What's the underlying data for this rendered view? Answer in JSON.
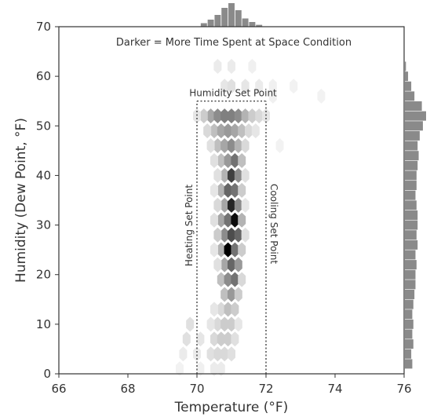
{
  "chart_data": {
    "type": "hexbin",
    "xlabel": "Temperature (°F)",
    "ylabel": "Humidity (Dew Point, °F)",
    "xlim": [
      66,
      76
    ],
    "ylim": [
      0,
      70
    ],
    "x_ticks": [
      66,
      68,
      70,
      72,
      74,
      76
    ],
    "y_ticks": [
      0,
      10,
      20,
      30,
      40,
      50,
      60,
      70
    ],
    "grid": false,
    "annotations": {
      "note": "Darker = More Time Spent at Space Condition",
      "humidity_set_point": "Humidity Set Point",
      "heating_set_point": "Heating Set Point",
      "cooling_set_point": "Cooling Set Point"
    },
    "set_points": {
      "heating_temperature": 70,
      "cooling_temperature": 72,
      "humidity_dew_point": 55
    },
    "hex_cells": [
      {
        "x": 70.4,
        "y": 52,
        "d": 0.35
      },
      {
        "x": 70.6,
        "y": 52,
        "d": 0.45
      },
      {
        "x": 70.8,
        "y": 52,
        "d": 0.5
      },
      {
        "x": 71.0,
        "y": 52,
        "d": 0.5
      },
      {
        "x": 71.2,
        "y": 52,
        "d": 0.45
      },
      {
        "x": 71.4,
        "y": 52,
        "d": 0.3
      },
      {
        "x": 71.6,
        "y": 52,
        "d": 0.2
      },
      {
        "x": 71.8,
        "y": 52,
        "d": 0.15
      },
      {
        "x": 72.0,
        "y": 52,
        "d": 0.1
      },
      {
        "x": 70.2,
        "y": 52,
        "d": 0.2
      },
      {
        "x": 70.0,
        "y": 52,
        "d": 0.1
      },
      {
        "x": 70.5,
        "y": 49,
        "d": 0.25
      },
      {
        "x": 70.7,
        "y": 49,
        "d": 0.35
      },
      {
        "x": 70.9,
        "y": 49,
        "d": 0.4
      },
      {
        "x": 71.1,
        "y": 49,
        "d": 0.35
      },
      {
        "x": 71.3,
        "y": 49,
        "d": 0.25
      },
      {
        "x": 71.5,
        "y": 49,
        "d": 0.15
      },
      {
        "x": 70.3,
        "y": 49,
        "d": 0.15
      },
      {
        "x": 71.7,
        "y": 49,
        "d": 0.1
      },
      {
        "x": 70.6,
        "y": 46,
        "d": 0.25
      },
      {
        "x": 70.8,
        "y": 46,
        "d": 0.35
      },
      {
        "x": 71.0,
        "y": 46,
        "d": 0.45
      },
      {
        "x": 71.2,
        "y": 46,
        "d": 0.3
      },
      {
        "x": 71.4,
        "y": 46,
        "d": 0.15
      },
      {
        "x": 70.4,
        "y": 46,
        "d": 0.12
      },
      {
        "x": 70.7,
        "y": 43,
        "d": 0.25
      },
      {
        "x": 70.9,
        "y": 43,
        "d": 0.4
      },
      {
        "x": 71.1,
        "y": 43,
        "d": 0.55
      },
      {
        "x": 71.3,
        "y": 43,
        "d": 0.25
      },
      {
        "x": 70.5,
        "y": 43,
        "d": 0.12
      },
      {
        "x": 70.8,
        "y": 40,
        "d": 0.3
      },
      {
        "x": 71.0,
        "y": 40,
        "d": 0.75
      },
      {
        "x": 71.2,
        "y": 40,
        "d": 0.45
      },
      {
        "x": 70.6,
        "y": 40,
        "d": 0.12
      },
      {
        "x": 71.4,
        "y": 40,
        "d": 0.12
      },
      {
        "x": 70.7,
        "y": 37,
        "d": 0.3
      },
      {
        "x": 70.9,
        "y": 37,
        "d": 0.6
      },
      {
        "x": 71.1,
        "y": 37,
        "d": 0.55
      },
      {
        "x": 71.3,
        "y": 37,
        "d": 0.2
      },
      {
        "x": 70.5,
        "y": 37,
        "d": 0.1
      },
      {
        "x": 70.8,
        "y": 34,
        "d": 0.35
      },
      {
        "x": 71.0,
        "y": 34,
        "d": 0.85
      },
      {
        "x": 71.2,
        "y": 34,
        "d": 0.45
      },
      {
        "x": 70.6,
        "y": 34,
        "d": 0.15
      },
      {
        "x": 71.4,
        "y": 34,
        "d": 0.1
      },
      {
        "x": 70.7,
        "y": 31,
        "d": 0.35
      },
      {
        "x": 70.9,
        "y": 31,
        "d": 0.55
      },
      {
        "x": 71.1,
        "y": 31,
        "d": 0.95
      },
      {
        "x": 71.3,
        "y": 31,
        "d": 0.3
      },
      {
        "x": 70.5,
        "y": 31,
        "d": 0.12
      },
      {
        "x": 70.8,
        "y": 28,
        "d": 0.45
      },
      {
        "x": 71.0,
        "y": 28,
        "d": 0.7
      },
      {
        "x": 71.2,
        "y": 28,
        "d": 0.6
      },
      {
        "x": 70.6,
        "y": 28,
        "d": 0.2
      },
      {
        "x": 71.4,
        "y": 28,
        "d": 0.12
      },
      {
        "x": 70.7,
        "y": 25,
        "d": 0.3
      },
      {
        "x": 70.9,
        "y": 25,
        "d": 1.0
      },
      {
        "x": 71.1,
        "y": 25,
        "d": 0.55
      },
      {
        "x": 71.3,
        "y": 25,
        "d": 0.2
      },
      {
        "x": 70.5,
        "y": 25,
        "d": 0.1
      },
      {
        "x": 70.8,
        "y": 22,
        "d": 0.35
      },
      {
        "x": 71.0,
        "y": 22,
        "d": 0.6
      },
      {
        "x": 71.2,
        "y": 22,
        "d": 0.4
      },
      {
        "x": 70.6,
        "y": 22,
        "d": 0.12
      },
      {
        "x": 70.7,
        "y": 19,
        "d": 0.25
      },
      {
        "x": 70.9,
        "y": 19,
        "d": 0.45
      },
      {
        "x": 71.1,
        "y": 19,
        "d": 0.55
      },
      {
        "x": 71.3,
        "y": 19,
        "d": 0.15
      },
      {
        "x": 70.8,
        "y": 16,
        "d": 0.25
      },
      {
        "x": 71.0,
        "y": 16,
        "d": 0.4
      },
      {
        "x": 71.2,
        "y": 16,
        "d": 0.2
      },
      {
        "x": 70.7,
        "y": 13,
        "d": 0.15
      },
      {
        "x": 70.9,
        "y": 13,
        "d": 0.25
      },
      {
        "x": 71.1,
        "y": 13,
        "d": 0.2
      },
      {
        "x": 70.5,
        "y": 13,
        "d": 0.1
      },
      {
        "x": 70.6,
        "y": 10,
        "d": 0.15
      },
      {
        "x": 70.8,
        "y": 10,
        "d": 0.2
      },
      {
        "x": 71.0,
        "y": 10,
        "d": 0.2
      },
      {
        "x": 70.4,
        "y": 10,
        "d": 0.1
      },
      {
        "x": 71.2,
        "y": 10,
        "d": 0.1
      },
      {
        "x": 69.8,
        "y": 10,
        "d": 0.12
      },
      {
        "x": 70.5,
        "y": 7,
        "d": 0.15
      },
      {
        "x": 70.7,
        "y": 7,
        "d": 0.2
      },
      {
        "x": 70.9,
        "y": 7,
        "d": 0.2
      },
      {
        "x": 71.1,
        "y": 7,
        "d": 0.12
      },
      {
        "x": 70.1,
        "y": 7,
        "d": 0.1
      },
      {
        "x": 69.7,
        "y": 7,
        "d": 0.12
      },
      {
        "x": 70.4,
        "y": 4,
        "d": 0.12
      },
      {
        "x": 70.6,
        "y": 4,
        "d": 0.15
      },
      {
        "x": 70.8,
        "y": 4,
        "d": 0.15
      },
      {
        "x": 71.0,
        "y": 4,
        "d": 0.12
      },
      {
        "x": 70.0,
        "y": 4,
        "d": 0.08
      },
      {
        "x": 69.6,
        "y": 4,
        "d": 0.08
      },
      {
        "x": 70.5,
        "y": 1,
        "d": 0.08
      },
      {
        "x": 70.7,
        "y": 1,
        "d": 0.08
      },
      {
        "x": 70.1,
        "y": 1,
        "d": 0.06
      },
      {
        "x": 69.5,
        "y": 1,
        "d": 0.05
      },
      {
        "x": 70.8,
        "y": 58,
        "d": 0.1
      },
      {
        "x": 71.0,
        "y": 58,
        "d": 0.12
      },
      {
        "x": 71.4,
        "y": 58,
        "d": 0.1
      },
      {
        "x": 71.8,
        "y": 58,
        "d": 0.08
      },
      {
        "x": 72.2,
        "y": 58,
        "d": 0.06
      },
      {
        "x": 72.8,
        "y": 58,
        "d": 0.05
      },
      {
        "x": 73.6,
        "y": 56,
        "d": 0.05
      },
      {
        "x": 70.6,
        "y": 62,
        "d": 0.08
      },
      {
        "x": 71.0,
        "y": 62,
        "d": 0.08
      },
      {
        "x": 71.6,
        "y": 62,
        "d": 0.06
      },
      {
        "x": 72.2,
        "y": 56,
        "d": 0.06
      },
      {
        "x": 72.4,
        "y": 46,
        "d": 0.05
      }
    ],
    "top_marginal": {
      "x": [
        70.2,
        70.4,
        70.6,
        70.8,
        71.0,
        71.2,
        71.4,
        71.6,
        71.8
      ],
      "counts": [
        0.15,
        0.3,
        0.5,
        0.8,
        1.0,
        0.7,
        0.35,
        0.2,
        0.08
      ]
    },
    "right_marginal": {
      "y": [
        2,
        4,
        6,
        8,
        10,
        12,
        14,
        16,
        18,
        20,
        22,
        24,
        26,
        28,
        30,
        32,
        34,
        36,
        38,
        40,
        42,
        44,
        46,
        48,
        50,
        52,
        54,
        56,
        58,
        60,
        62
      ],
      "counts": [
        0.35,
        0.3,
        0.4,
        0.35,
        0.4,
        0.35,
        0.4,
        0.45,
        0.5,
        0.5,
        0.55,
        0.5,
        0.6,
        0.55,
        0.6,
        0.6,
        0.55,
        0.5,
        0.55,
        0.55,
        0.6,
        0.65,
        0.6,
        0.7,
        0.85,
        1.0,
        0.8,
        0.45,
        0.3,
        0.15,
        0.05
      ]
    }
  }
}
